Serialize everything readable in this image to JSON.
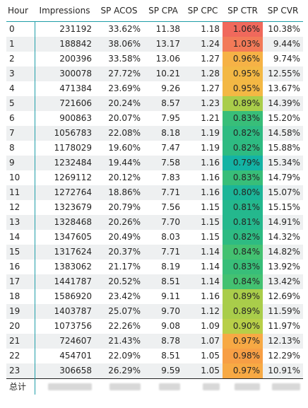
{
  "columns": [
    "Hour",
    "Impressions",
    "SP ACOS",
    "SP CPA",
    "SP CPC",
    "SP CTR",
    "SP CVR"
  ],
  "rows": [
    {
      "hour": "0",
      "impressions": "231192",
      "acos": "33.62%",
      "cpa": "11.38",
      "cpc": "1.18",
      "ctr": "1.06%",
      "cvr": "10.38%",
      "ctr_color": "#f0695c"
    },
    {
      "hour": "1",
      "impressions": "188842",
      "acos": "38.06%",
      "cpa": "13.17",
      "cpc": "1.24",
      "ctr": "1.03%",
      "cvr": "9.44%",
      "ctr_color": "#f27a58"
    },
    {
      "hour": "2",
      "impressions": "200396",
      "acos": "33.58%",
      "cpa": "13.06",
      "cpc": "1.27",
      "ctr": "0.96%",
      "cvr": "9.74%",
      "ctr_color": "#f6b246"
    },
    {
      "hour": "3",
      "impressions": "300078",
      "acos": "27.72%",
      "cpa": "10.21",
      "cpc": "1.28",
      "ctr": "0.95%",
      "cvr": "12.55%",
      "ctr_color": "#f3b844"
    },
    {
      "hour": "4",
      "impressions": "471384",
      "acos": "23.69%",
      "cpa": "9.26",
      "cpc": "1.27",
      "ctr": "0.95%",
      "cvr": "13.67%",
      "ctr_color": "#f3b844"
    },
    {
      "hour": "5",
      "impressions": "721606",
      "acos": "20.24%",
      "cpa": "8.57",
      "cpc": "1.23",
      "ctr": "0.89%",
      "cvr": "14.39%",
      "ctr_color": "#a9cd4a"
    },
    {
      "hour": "6",
      "impressions": "900863",
      "acos": "20.07%",
      "cpa": "7.95",
      "cpc": "1.21",
      "ctr": "0.83%",
      "cvr": "15.20%",
      "ctr_color": "#38be79"
    },
    {
      "hour": "7",
      "impressions": "1056783",
      "acos": "22.08%",
      "cpa": "8.18",
      "cpc": "1.19",
      "ctr": "0.82%",
      "cvr": "14.58%",
      "ctr_color": "#2ebb82"
    },
    {
      "hour": "8",
      "impressions": "1178029",
      "acos": "19.60%",
      "cpa": "7.47",
      "cpc": "1.19",
      "ctr": "0.82%",
      "cvr": "15.88%",
      "ctr_color": "#2ebb82"
    },
    {
      "hour": "9",
      "impressions": "1232484",
      "acos": "19.44%",
      "cpa": "7.58",
      "cpc": "1.16",
      "ctr": "0.79%",
      "cvr": "15.34%",
      "ctr_color": "#13b3a4"
    },
    {
      "hour": "10",
      "impressions": "1269112",
      "acos": "20.12%",
      "cpa": "7.83",
      "cpc": "1.16",
      "ctr": "0.83%",
      "cvr": "14.79%",
      "ctr_color": "#38be79"
    },
    {
      "hour": "11",
      "impressions": "1272764",
      "acos": "18.86%",
      "cpa": "7.71",
      "cpc": "1.16",
      "ctr": "0.80%",
      "cvr": "15.07%",
      "ctr_color": "#1bb598"
    },
    {
      "hour": "12",
      "impressions": "1323679",
      "acos": "20.79%",
      "cpa": "7.56",
      "cpc": "1.15",
      "ctr": "0.81%",
      "cvr": "15.15%",
      "ctr_color": "#24b88d"
    },
    {
      "hour": "13",
      "impressions": "1328468",
      "acos": "20.26%",
      "cpa": "7.70",
      "cpc": "1.15",
      "ctr": "0.81%",
      "cvr": "14.91%",
      "ctr_color": "#24b88d"
    },
    {
      "hour": "14",
      "impressions": "1347605",
      "acos": "20.49%",
      "cpa": "8.03",
      "cpc": "1.15",
      "ctr": "0.82%",
      "cvr": "14.32%",
      "ctr_color": "#2ebb82"
    },
    {
      "hour": "15",
      "impressions": "1317624",
      "acos": "20.37%",
      "cpa": "7.71",
      "cpc": "1.14",
      "ctr": "0.84%",
      "cvr": "14.82%",
      "ctr_color": "#43c171"
    },
    {
      "hour": "16",
      "impressions": "1383062",
      "acos": "21.17%",
      "cpa": "8.19",
      "cpc": "1.14",
      "ctr": "0.83%",
      "cvr": "13.92%",
      "ctr_color": "#38be79"
    },
    {
      "hour": "17",
      "impressions": "1441787",
      "acos": "20.52%",
      "cpa": "8.51",
      "cpc": "1.14",
      "ctr": "0.84%",
      "cvr": "13.42%",
      "ctr_color": "#43c171"
    },
    {
      "hour": "18",
      "impressions": "1586920",
      "acos": "23.42%",
      "cpa": "9.11",
      "cpc": "1.16",
      "ctr": "0.89%",
      "cvr": "12.69%",
      "ctr_color": "#a9cd4a"
    },
    {
      "hour": "19",
      "impressions": "1403787",
      "acos": "25.07%",
      "cpa": "9.70",
      "cpc": "1.12",
      "ctr": "0.89%",
      "cvr": "11.59%",
      "ctr_color": "#a9cd4a"
    },
    {
      "hour": "20",
      "impressions": "1073756",
      "acos": "22.26%",
      "cpa": "9.08",
      "cpc": "1.09",
      "ctr": "0.90%",
      "cvr": "11.97%",
      "ctr_color": "#b8cf48"
    },
    {
      "hour": "21",
      "impressions": "724607",
      "acos": "21.43%",
      "cpa": "8.78",
      "cpc": "1.07",
      "ctr": "0.97%",
      "cvr": "12.13%",
      "ctr_color": "#f7a944"
    },
    {
      "hour": "22",
      "impressions": "454701",
      "acos": "22.09%",
      "cpa": "8.51",
      "cpc": "1.05",
      "ctr": "0.98%",
      "cvr": "12.29%",
      "ctr_color": "#f79f45"
    },
    {
      "hour": "23",
      "impressions": "306658",
      "acos": "26.29%",
      "cpa": "9.59",
      "cpc": "1.05",
      "ctr": "0.97%",
      "cvr": "10.91%",
      "ctr_color": "#f7a944"
    }
  ],
  "total": {
    "label": "总计"
  }
}
